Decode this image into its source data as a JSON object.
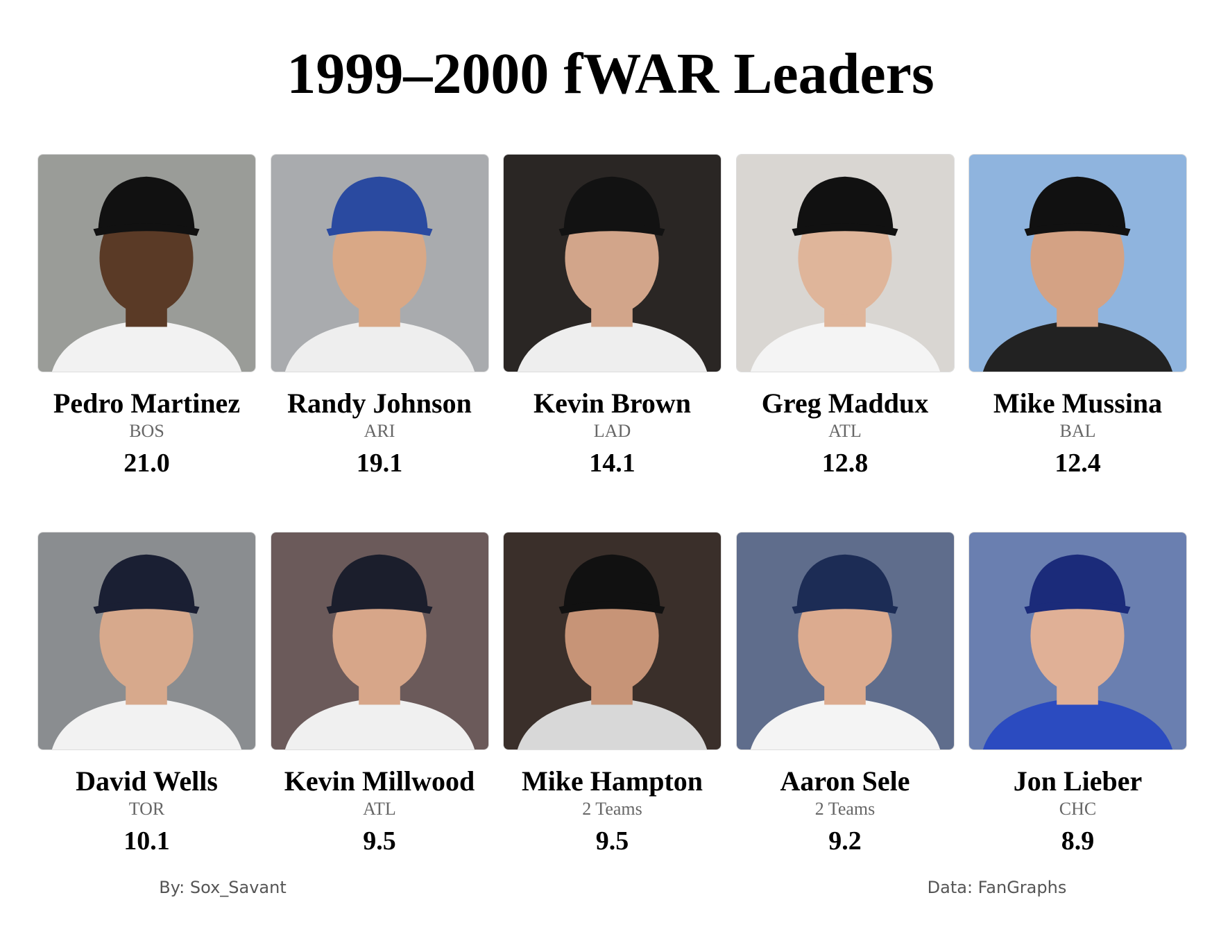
{
  "header": {
    "title": "1999–2000 fWAR Leaders"
  },
  "players": [
    {
      "name": "Pedro Martinez",
      "team": "BOS",
      "fwar": "21.0"
    },
    {
      "name": "Randy Johnson",
      "team": "ARI",
      "fwar": "19.1"
    },
    {
      "name": "Kevin Brown",
      "team": "LAD",
      "fwar": "14.1"
    },
    {
      "name": "Greg Maddux",
      "team": "ATL",
      "fwar": "12.8"
    },
    {
      "name": "Mike Mussina",
      "team": "BAL",
      "fwar": "12.4"
    },
    {
      "name": "David Wells",
      "team": "TOR",
      "fwar": "10.1"
    },
    {
      "name": "Kevin Millwood",
      "team": "ATL",
      "fwar": "9.5"
    },
    {
      "name": "Mike Hampton",
      "team": "2 Teams",
      "fwar": "9.5"
    },
    {
      "name": "Aaron Sele",
      "team": "2 Teams",
      "fwar": "9.2"
    },
    {
      "name": "Jon Lieber",
      "team": "CHC",
      "fwar": "8.9"
    }
  ],
  "footer": {
    "credit": "By: Sox_Savant",
    "source": "Data: FanGraphs"
  }
}
